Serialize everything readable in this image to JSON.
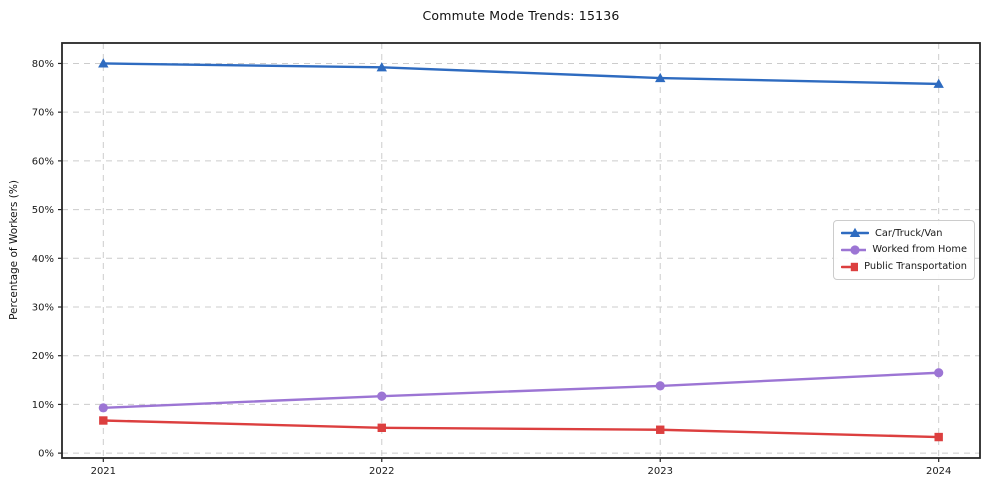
{
  "chart_data": {
    "type": "line",
    "title": "Commute Mode Trends: 15136",
    "xlabel": "",
    "ylabel": "Percentage of Workers (%)",
    "categories": [
      "2021",
      "2022",
      "2023",
      "2024"
    ],
    "series": [
      {
        "name": "Car/Truck/Van",
        "color": "#2e6bc0",
        "marker": "triangle",
        "values": [
          80.0,
          79.2,
          77.0,
          75.8
        ]
      },
      {
        "name": "Worked from Home",
        "color": "#9c75d4",
        "marker": "circle",
        "values": [
          9.3,
          11.7,
          13.8,
          16.5
        ]
      },
      {
        "name": "Public Transportation",
        "color": "#dc3f3f",
        "marker": "square",
        "values": [
          6.7,
          5.2,
          4.8,
          3.3
        ]
      }
    ],
    "yticks": {
      "values": [
        0,
        10,
        20,
        30,
        40,
        50,
        60,
        70,
        80
      ],
      "labels": [
        "0%",
        "10%",
        "20%",
        "30%",
        "40%",
        "50%",
        "60%",
        "70%",
        "80%"
      ]
    },
    "ylim": [
      -1.0,
      84.2
    ],
    "grid": true,
    "legend_position": "center right",
    "colors": {
      "grid": "#cccccc",
      "axis": "#262626",
      "tick_text": "#1a1a1a",
      "background": "#ffffff"
    }
  }
}
